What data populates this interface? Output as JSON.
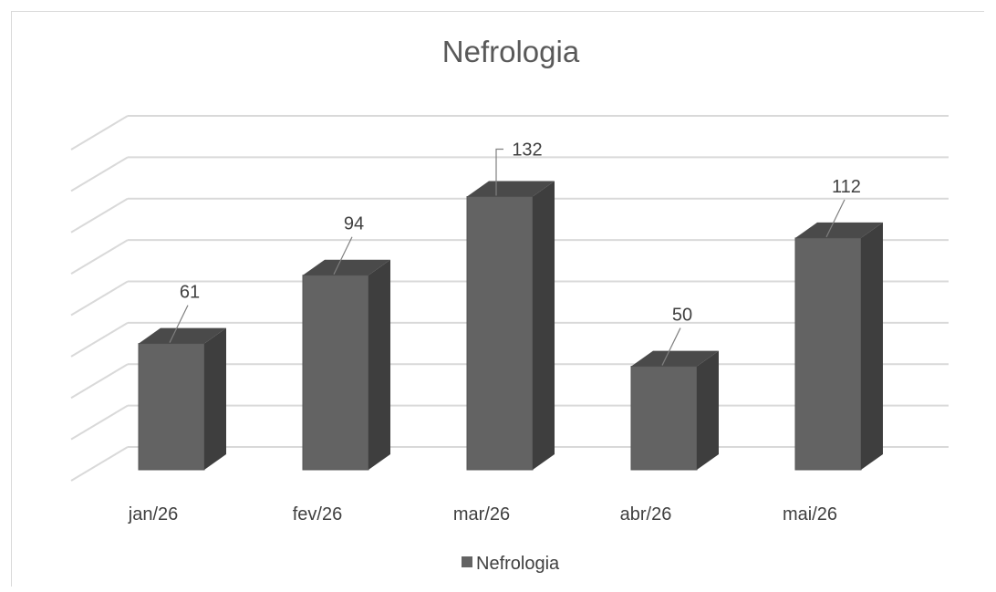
{
  "chart_data": {
    "type": "bar",
    "title": "Nefrologia",
    "categories": [
      "jan/26",
      "fev/26",
      "mar/26",
      "abr/26",
      "mai/26"
    ],
    "series": [
      {
        "name": "Nefrologia",
        "values": [
          61,
          94,
          132,
          50,
          112
        ]
      }
    ],
    "ylim": [
      0,
      160
    ],
    "grid": true,
    "legend": "bottom",
    "three_d": true,
    "colors": {
      "front": "#636363",
      "side": "#3e3e3e",
      "top": "#4a4a4a",
      "grid": "#d9d9d9",
      "leader": "#7f7f7f"
    }
  }
}
